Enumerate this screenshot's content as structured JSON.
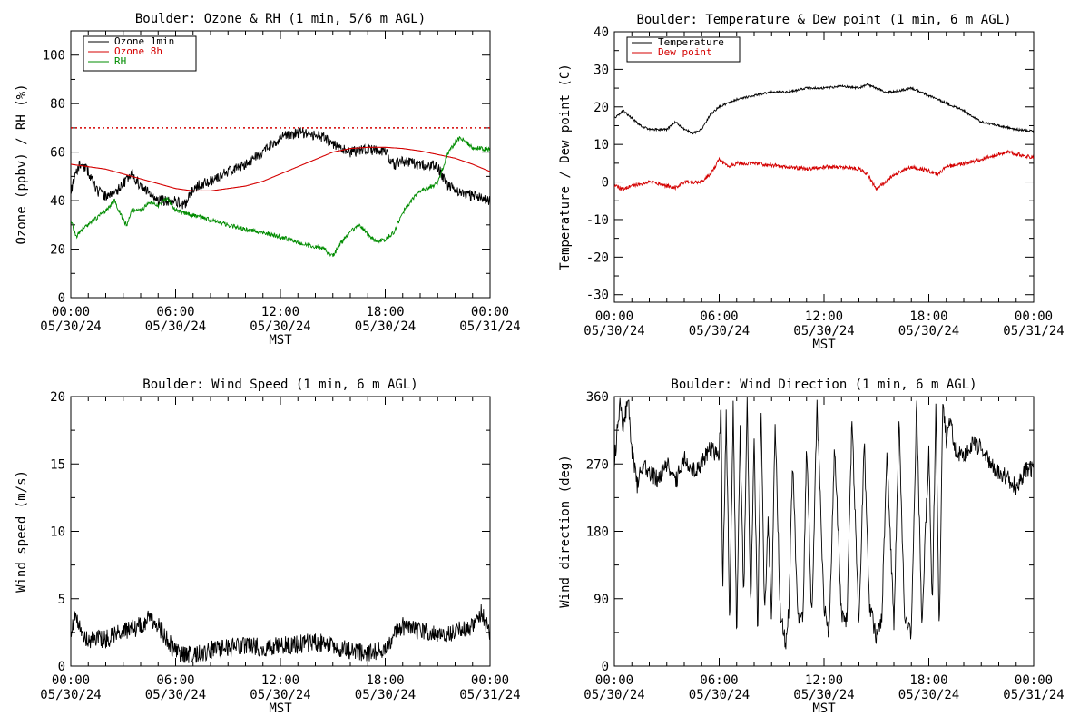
{
  "xaxis": {
    "tick_hours": [
      0,
      6,
      12,
      18,
      24
    ],
    "tick_labels_time": [
      "00:00",
      "06:00",
      "12:00",
      "18:00",
      "00:00"
    ],
    "tick_labels_date": [
      "05/30/24",
      "05/30/24",
      "05/30/24",
      "05/30/24",
      "05/31/24"
    ],
    "label": "MST"
  },
  "chart_data": [
    {
      "type": "line",
      "title": "Boulder: Ozone & RH (1 min, 5/6 m AGL)",
      "ylabel": "Ozone (ppbv) / RH (%)",
      "ylim": [
        0,
        110
      ],
      "yticks": [
        0,
        20,
        40,
        60,
        80,
        100
      ],
      "xlim_hours": [
        0,
        24
      ],
      "legend": "top-left",
      "reference_line": {
        "y": 70,
        "color": "#d40000",
        "style": "dotted"
      },
      "series": [
        {
          "name": "Ozone 1min",
          "color": "#000000",
          "noise": 2.2,
          "seed": 11,
          "x_hours": [
            0,
            0.5,
            1,
            1.5,
            2,
            2.5,
            3,
            3.5,
            4,
            5,
            6,
            6.5,
            7,
            7.5,
            8,
            9,
            10,
            11,
            11.5,
            12,
            13,
            14,
            14.5,
            15,
            16,
            17,
            18,
            18.5,
            19,
            20,
            21,
            21.5,
            22,
            23,
            24
          ],
          "values": [
            44,
            55,
            52,
            44,
            42,
            43,
            47,
            51,
            46,
            40,
            40,
            38,
            45,
            47,
            48,
            52,
            55,
            60,
            63,
            66,
            68,
            67,
            66,
            63,
            60,
            61,
            60,
            55,
            56,
            55,
            54,
            47,
            44,
            42,
            40
          ]
        },
        {
          "name": "Ozone 8h",
          "color": "#d40000",
          "noise": 0,
          "seed": 0,
          "x_hours": [
            0,
            1,
            2,
            3,
            4,
            5,
            6,
            7,
            8,
            9,
            10,
            11,
            12,
            13,
            14,
            15,
            16,
            17,
            18,
            19,
            20,
            21,
            22,
            23,
            24
          ],
          "values": [
            55,
            54,
            53,
            51,
            49,
            47,
            45,
            44,
            44,
            45,
            46,
            48,
            51,
            54,
            57,
            60,
            61.5,
            62,
            62,
            61.5,
            60.5,
            59,
            57.5,
            55,
            52
          ]
        },
        {
          "name": "RH",
          "color": "#008c00",
          "noise": 0.9,
          "seed": 23,
          "x_hours": [
            0,
            0.3,
            0.6,
            1,
            1.5,
            2,
            2.5,
            3,
            3.2,
            3.5,
            4,
            4.5,
            5,
            5.5,
            6,
            7,
            8,
            9,
            10,
            11,
            12,
            13,
            14,
            14.5,
            15,
            15.5,
            16,
            16.5,
            17,
            17.5,
            18,
            18.5,
            19,
            19.5,
            20,
            21,
            21.5,
            22,
            22.3,
            23,
            24
          ],
          "values": [
            32,
            25,
            28,
            30,
            33,
            36,
            40,
            32,
            30,
            36,
            36,
            39,
            38,
            41,
            36,
            34,
            32,
            30,
            28,
            27,
            25,
            23,
            21,
            20,
            17,
            23,
            27,
            30,
            26,
            23,
            24,
            27,
            35,
            40,
            44,
            47,
            58,
            64,
            66,
            62,
            61
          ]
        }
      ]
    },
    {
      "type": "line",
      "title": "Boulder: Temperature & Dew point (1 min, 6 m AGL)",
      "ylabel": "Temperature / Dew point (C)",
      "ylim": [
        -32,
        40
      ],
      "yticks": [
        -30,
        -20,
        -10,
        0,
        10,
        20,
        30,
        40
      ],
      "xlim_hours": [
        0,
        24
      ],
      "legend": "top-left",
      "series": [
        {
          "name": "Temperature",
          "color": "#000000",
          "noise": 0.3,
          "seed": 31,
          "x_hours": [
            0,
            0.5,
            1,
            1.5,
            2,
            3,
            3.5,
            4,
            4.5,
            5,
            5.5,
            6,
            6.5,
            7,
            8,
            9,
            10,
            11,
            12,
            13,
            14,
            14.5,
            15,
            15.5,
            16,
            17,
            18,
            19,
            20,
            21,
            22,
            23,
            24
          ],
          "values": [
            17,
            19,
            17,
            15,
            14,
            14,
            16,
            14,
            13,
            14,
            18,
            20,
            21,
            22,
            23,
            24,
            24,
            25,
            25,
            25.5,
            25,
            26,
            25,
            24,
            24,
            25,
            23,
            21,
            19,
            16,
            15,
            14,
            13.5
          ]
        },
        {
          "name": "Dew point",
          "color": "#d40000",
          "noise": 0.5,
          "seed": 37,
          "x_hours": [
            0,
            0.5,
            1,
            2,
            3,
            3.5,
            4,
            5,
            5.5,
            6,
            6.5,
            7,
            8,
            9,
            10,
            11,
            12,
            13,
            14,
            14.5,
            15,
            15.5,
            16,
            17,
            18,
            18.5,
            19,
            20,
            21,
            22,
            22.5,
            23,
            24
          ],
          "values": [
            -1,
            -2,
            -1,
            0,
            -1,
            -1.5,
            0,
            0,
            2,
            6,
            4,
            5,
            5,
            4.5,
            4,
            3.5,
            4,
            4,
            3.5,
            2,
            -2,
            0,
            2,
            4,
            3,
            2,
            4,
            5,
            6,
            7.5,
            8,
            7.5,
            6.5
          ]
        }
      ]
    },
    {
      "type": "line",
      "title": "Boulder: Wind Speed (1 min, 6 m AGL)",
      "ylabel": "Wind speed (m/s)",
      "ylim": [
        0,
        20
      ],
      "yticks": [
        0,
        5,
        10,
        15,
        20
      ],
      "xlim_hours": [
        0,
        24
      ],
      "legend": "none",
      "series": [
        {
          "name": "",
          "color": "#000000",
          "noise": 0.7,
          "seed": 41,
          "x_hours": [
            0,
            0.3,
            0.6,
            1,
            1.5,
            2,
            3,
            4,
            4.5,
            5,
            5.5,
            6,
            6.5,
            7,
            8,
            9,
            10,
            11,
            12,
            13,
            14,
            15,
            16,
            17,
            18,
            18.5,
            19,
            20,
            21,
            22,
            23,
            23.5,
            24
          ],
          "values": [
            2.5,
            4,
            2.5,
            2,
            2,
            2,
            2.5,
            3,
            3.5,
            3,
            2,
            1,
            0.8,
            0.8,
            1.2,
            1.3,
            1.5,
            1.4,
            1.5,
            1.6,
            1.8,
            1.5,
            1.2,
            1,
            1.2,
            2.5,
            3,
            2.5,
            2.5,
            2.5,
            3,
            4,
            2.5
          ]
        }
      ]
    },
    {
      "type": "line",
      "title": "Boulder: Wind Direction (1 min, 6 m AGL)",
      "ylabel": "Wind direction (deg)",
      "ylim": [
        0,
        360
      ],
      "yticks": [
        0,
        90,
        180,
        270,
        360
      ],
      "xlim_hours": [
        0,
        24
      ],
      "legend": "none",
      "series": [
        {
          "name": "",
          "color": "#000000",
          "noise": 12,
          "seed": 53,
          "x_hours": [
            0,
            0.3,
            0.5,
            0.8,
            1,
            1.3,
            1.5,
            2,
            2.5,
            3,
            3.5,
            4,
            4.5,
            5,
            5.5,
            6,
            6.1,
            6.2,
            6.4,
            6.6,
            6.8,
            7,
            7.2,
            7.4,
            7.6,
            7.8,
            8,
            8.2,
            8.4,
            8.6,
            8.8,
            9,
            9.2,
            9.5,
            9.8,
            10,
            10.2,
            10.5,
            10.8,
            11,
            11.3,
            11.6,
            12,
            12.3,
            12.6,
            13,
            13.3,
            13.6,
            14,
            14.3,
            14.6,
            15,
            15.3,
            15.6,
            16,
            16.3,
            16.6,
            17,
            17.3,
            17.6,
            18,
            18.2,
            18.4,
            18.6,
            18.8,
            19,
            19.2,
            19.5,
            20,
            20.5,
            21,
            21.5,
            22,
            22.5,
            23,
            23.5,
            24
          ],
          "values": [
            270,
            350,
            320,
            355,
            290,
            240,
            270,
            260,
            250,
            270,
            245,
            280,
            260,
            270,
            290,
            280,
            355,
            90,
            340,
            60,
            350,
            40,
            320,
            80,
            360,
            70,
            300,
            40,
            350,
            60,
            200,
            60,
            330,
            70,
            30,
            80,
            280,
            60,
            70,
            300,
            60,
            350,
            80,
            40,
            300,
            70,
            60,
            330,
            50,
            300,
            80,
            40,
            60,
            280,
            60,
            330,
            70,
            40,
            350,
            60,
            290,
            80,
            350,
            40,
            360,
            300,
            330,
            290,
            280,
            300,
            290,
            270,
            260,
            250,
            240,
            260,
            265
          ]
        }
      ]
    }
  ]
}
